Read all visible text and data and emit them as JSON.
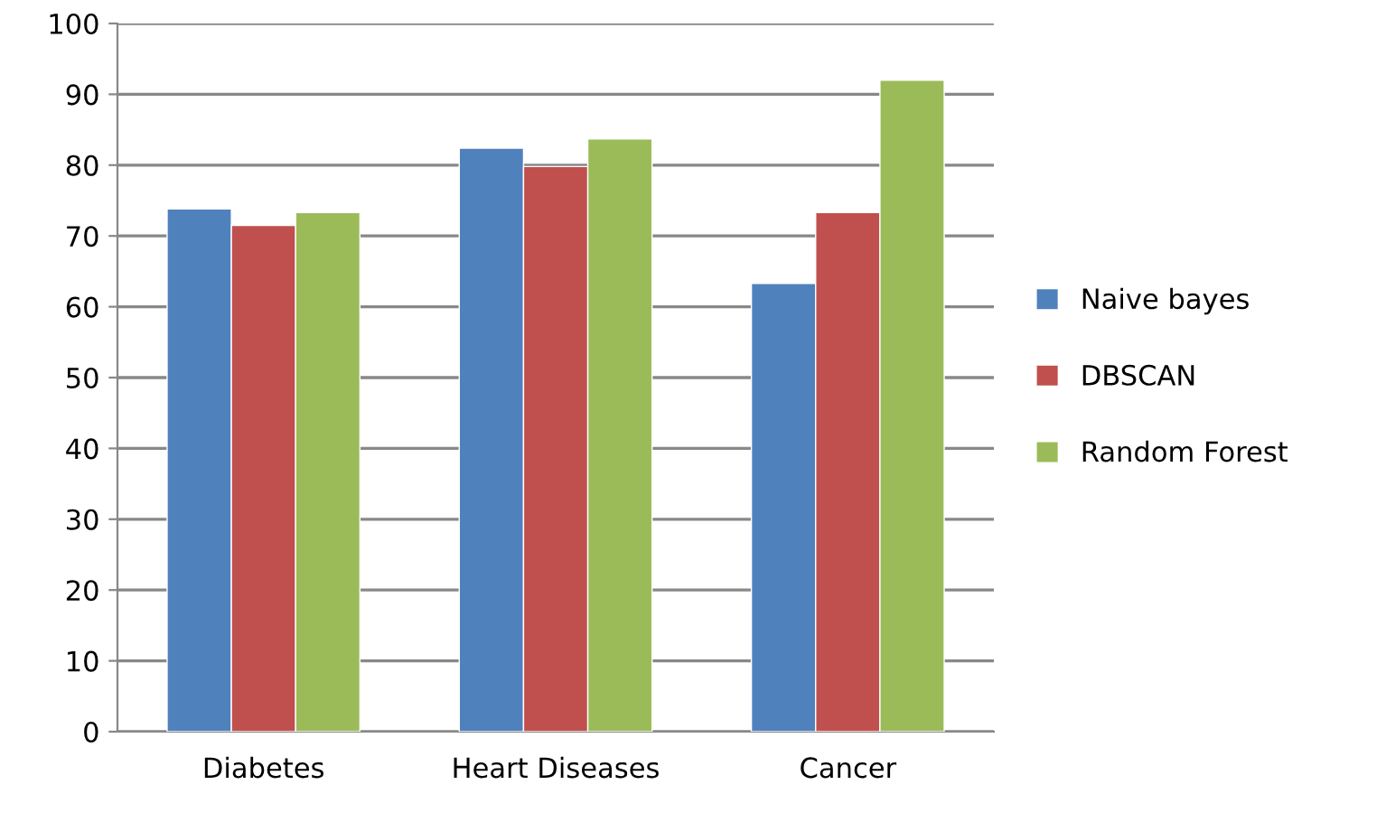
{
  "chart_data": {
    "type": "bar",
    "categories": [
      "Diabetes",
      "Heart Diseases",
      "Cancer"
    ],
    "series": [
      {
        "name": "Naive bayes",
        "color": "#4f81bd",
        "values": [
          73.8,
          82.4,
          63.3
        ]
      },
      {
        "name": "DBSCAN",
        "color": "#c0504d",
        "values": [
          71.5,
          79.8,
          73.3
        ]
      },
      {
        "name": "Random Forest",
        "color": "#9bbb59",
        "values": [
          73.3,
          83.7,
          92.0
        ]
      }
    ],
    "ylim": [
      0,
      100
    ],
    "yticks": [
      0,
      10,
      20,
      30,
      40,
      50,
      60,
      70,
      80,
      90,
      100
    ],
    "grid": "y",
    "legend": "right"
  }
}
